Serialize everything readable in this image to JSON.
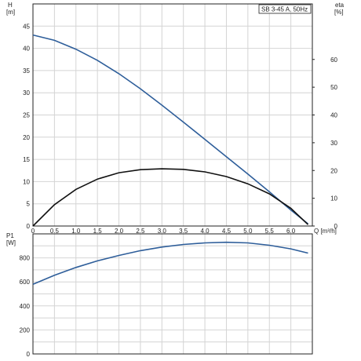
{
  "pump_label": "SB 3-45 A, 50Hz",
  "chart_data": [
    {
      "type": "line",
      "name": "head-efficiency",
      "ylabel_left": "H",
      "ylabel_left_unit": "[m]",
      "ylabel_right": "eta",
      "ylabel_right_unit": "[%]",
      "xlabel": "Q",
      "xlabel_unit": "[m³/h]",
      "xlim": [
        0,
        6.5
      ],
      "ylim_left": [
        0,
        50
      ],
      "ylim_right": [
        0,
        80
      ],
      "x_ticks": [
        "0",
        "0.5",
        "1.0",
        "1.5",
        "2.0",
        "2.5",
        "3.0",
        "3.5",
        "4.0",
        "4.5",
        "5.0",
        "5.5",
        "6.0"
      ],
      "y_left_ticks": [
        "0",
        "5",
        "10",
        "15",
        "20",
        "25",
        "30",
        "35",
        "40",
        "45"
      ],
      "y_right_ticks": [
        "0",
        "10",
        "20",
        "30",
        "40",
        "50",
        "60"
      ],
      "grid": true,
      "series": [
        {
          "axis": "left",
          "color": "#2e5e9a",
          "x": [
            0,
            0.5,
            1.0,
            1.5,
            2.0,
            2.5,
            3.0,
            3.5,
            4.0,
            4.5,
            5.0,
            5.5,
            6.0,
            6.4
          ],
          "y": [
            43,
            41.8,
            39.8,
            37.3,
            34.3,
            30.9,
            27.2,
            23.4,
            19.5,
            15.6,
            11.7,
            7.7,
            3.6,
            0.5
          ]
        },
        {
          "axis": "right",
          "color": "#111111",
          "x": [
            0,
            0.5,
            1.0,
            1.5,
            2.0,
            2.5,
            3.0,
            3.5,
            4.0,
            4.5,
            5.0,
            5.5,
            6.0,
            6.4
          ],
          "y": [
            0,
            7.7,
            13.2,
            16.9,
            19.2,
            20.3,
            20.6,
            20.4,
            19.5,
            17.8,
            15.2,
            11.6,
            6.4,
            0.5
          ]
        }
      ]
    },
    {
      "type": "line",
      "name": "power",
      "ylabel_left": "P1",
      "ylabel_left_unit": "[W]",
      "xlim": [
        0,
        6.5
      ],
      "ylim_left": [
        0,
        1000
      ],
      "y_left_ticks": [
        "0",
        "200",
        "400",
        "600",
        "800"
      ],
      "grid": true,
      "series": [
        {
          "axis": "left",
          "color": "#2e5e9a",
          "x": [
            0,
            0.5,
            1.0,
            1.5,
            2.0,
            2.5,
            3.0,
            3.5,
            4.0,
            4.5,
            5.0,
            5.5,
            6.0,
            6.4
          ],
          "y": [
            580,
            655,
            720,
            775,
            820,
            860,
            890,
            912,
            925,
            930,
            925,
            905,
            875,
            840
          ]
        }
      ]
    }
  ]
}
